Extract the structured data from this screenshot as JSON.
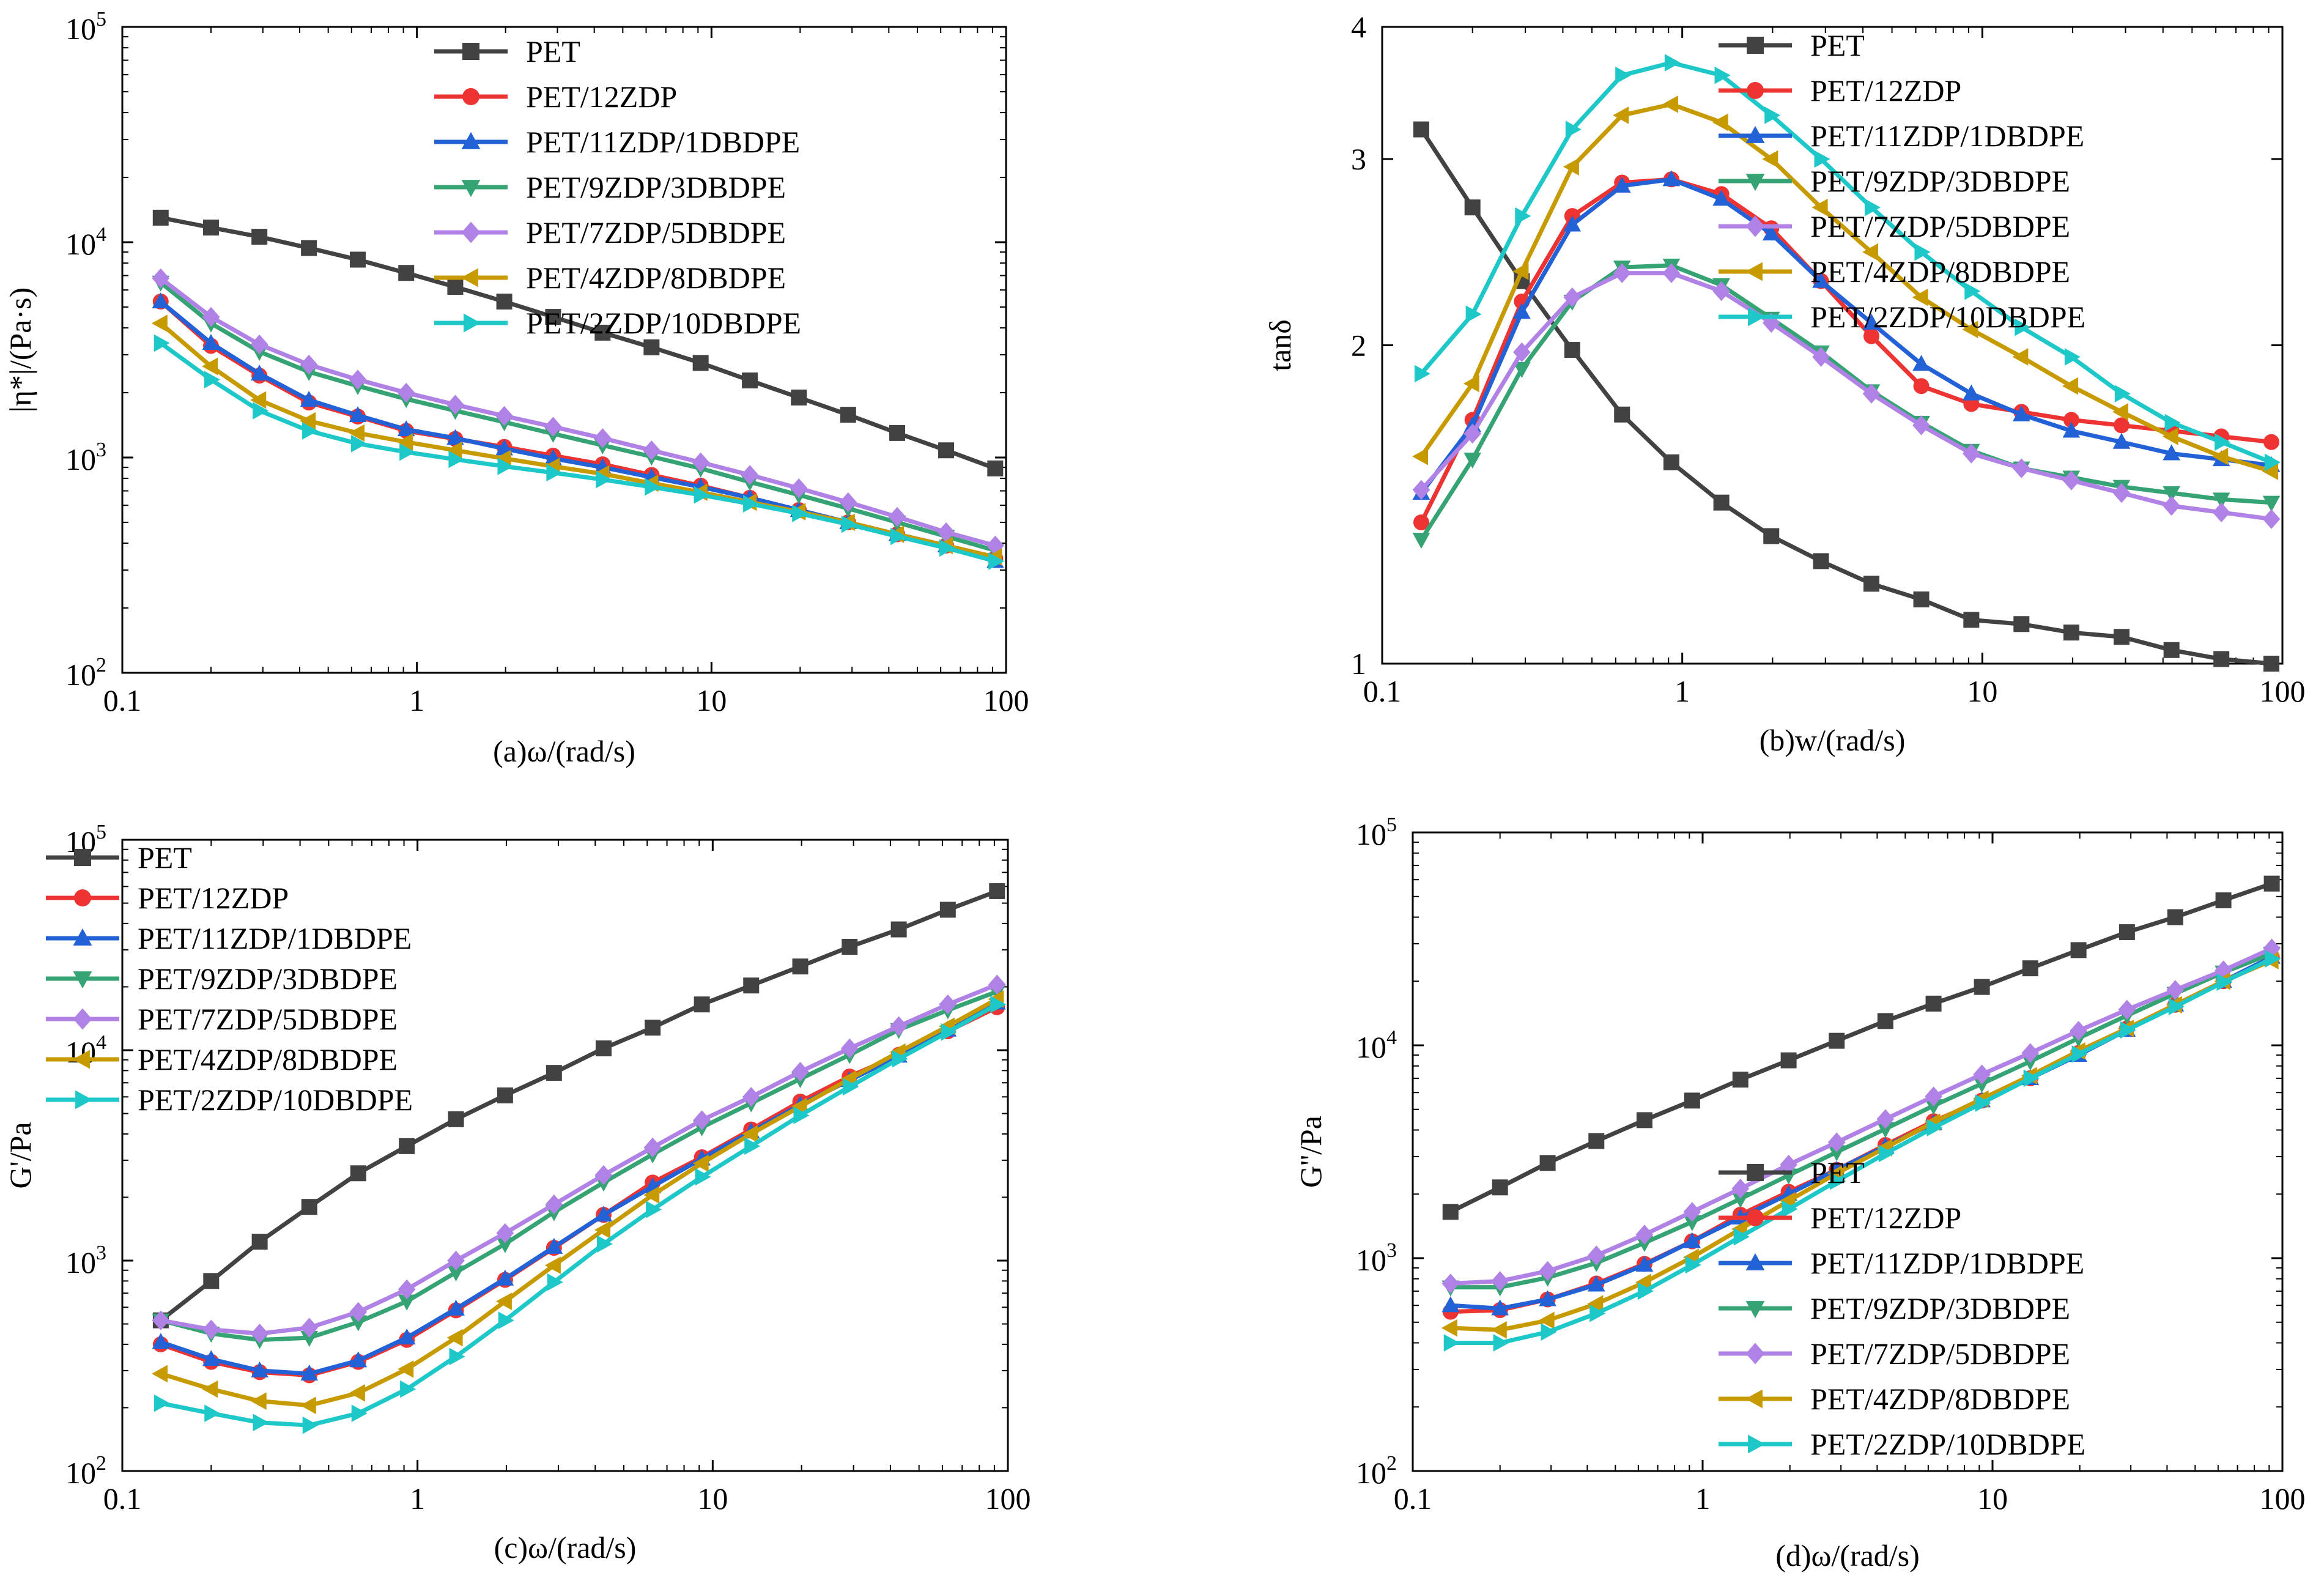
{
  "series_colors": {
    "PET": "#424242",
    "PET/12ZDP": "#ee3333",
    "PET/11ZDP/1DBDPE": "#2261d6",
    "PET/9ZDP/3DBDPE": "#35a373",
    "PET/7ZDP/5DBDPE": "#b082e6",
    "PET/4ZDP/8DBDPE": "#c79a00",
    "PET/2ZDP/10DBDPE": "#1ec8c8"
  },
  "series_markers": {
    "PET": "square",
    "PET/12ZDP": "circle",
    "PET/11ZDP/1DBDPE": "triangle-up",
    "PET/9ZDP/3DBDPE": "triangle-down",
    "PET/7ZDP/5DBDPE": "diamond",
    "PET/4ZDP/8DBDPE": "triangle-left",
    "PET/2ZDP/10DBDPE": "triangle-right"
  },
  "chart_data": [
    {
      "id": "a",
      "type": "line",
      "xscale": "log",
      "yscale": "log",
      "xlim": [
        0.1,
        100
      ],
      "ylim": [
        100,
        100000
      ],
      "xlabel": "(a)ω/(rad/s)",
      "ylabel": "|η*|/(Pa·s)",
      "xticks": [
        "0.1",
        "1",
        "10",
        "100"
      ],
      "yticks": [
        "10^2",
        "10^3",
        "10^4",
        "10^5"
      ],
      "legend": "top-right",
      "x": [
        0.135,
        0.2,
        0.292,
        0.43,
        0.63,
        0.92,
        1.35,
        1.98,
        2.9,
        4.27,
        6.26,
        9.19,
        13.5,
        19.8,
        29.1,
        42.7,
        62.6,
        91.9
      ],
      "series": [
        {
          "name": "PET",
          "values": [
            13000,
            11700,
            10600,
            9400,
            8300,
            7200,
            6200,
            5300,
            4500,
            3800,
            3250,
            2750,
            2280,
            1900,
            1580,
            1300,
            1080,
            890
          ]
        },
        {
          "name": "PET/12ZDP",
          "values": [
            5300,
            3300,
            2400,
            1800,
            1550,
            1330,
            1220,
            1120,
            1020,
            930,
            830,
            740,
            650,
            570,
            500,
            440,
            390,
            340
          ]
        },
        {
          "name": "PET/11ZDP/1DBDPE",
          "values": [
            5300,
            3400,
            2450,
            1850,
            1570,
            1350,
            1230,
            1100,
            990,
            900,
            810,
            730,
            650,
            570,
            500,
            440,
            390,
            330
          ]
        },
        {
          "name": "PET/9ZDP/3DBDPE",
          "values": [
            6500,
            4200,
            3100,
            2500,
            2150,
            1870,
            1650,
            1460,
            1290,
            1140,
            1010,
            890,
            770,
            670,
            580,
            500,
            430,
            370
          ]
        },
        {
          "name": "PET/7ZDP/5DBDPE",
          "values": [
            6800,
            4500,
            3350,
            2700,
            2300,
            2000,
            1760,
            1560,
            1390,
            1230,
            1080,
            950,
            830,
            720,
            620,
            530,
            450,
            390
          ]
        },
        {
          "name": "PET/4ZDP/8DBDPE",
          "values": [
            4200,
            2650,
            1850,
            1480,
            1300,
            1180,
            1080,
            990,
            910,
            840,
            760,
            690,
            620,
            560,
            500,
            440,
            390,
            345
          ]
        },
        {
          "name": "PET/2ZDP/10DBDPE",
          "values": [
            3400,
            2300,
            1650,
            1330,
            1160,
            1060,
            980,
            910,
            850,
            790,
            730,
            670,
            610,
            550,
            490,
            430,
            380,
            330
          ]
        }
      ]
    },
    {
      "id": "b",
      "type": "line",
      "xscale": "log",
      "yscale": "log",
      "xlim": [
        0.1,
        100
      ],
      "ylim": [
        1,
        4
      ],
      "xlabel": "(b)w/(rad/s)",
      "ylabel": "tanδ",
      "xticks": [
        "0.1",
        "1",
        "10",
        "100"
      ],
      "yticks": [
        "1",
        "2",
        "3",
        "4"
      ],
      "legend": "top-right",
      "x": [
        0.135,
        0.2,
        0.292,
        0.43,
        0.63,
        0.92,
        1.35,
        1.98,
        2.9,
        4.27,
        6.26,
        9.19,
        13.5,
        19.8,
        29.1,
        42.7,
        62.6,
        91.9
      ],
      "series": [
        {
          "name": "PET",
          "values": [
            3.2,
            2.7,
            2.3,
            1.98,
            1.72,
            1.55,
            1.42,
            1.32,
            1.25,
            1.19,
            1.15,
            1.1,
            1.09,
            1.07,
            1.06,
            1.03,
            1.01,
            1.0
          ]
        },
        {
          "name": "PET/12ZDP",
          "values": [
            1.36,
            1.7,
            2.2,
            2.65,
            2.85,
            2.87,
            2.78,
            2.58,
            2.3,
            2.04,
            1.83,
            1.76,
            1.73,
            1.7,
            1.68,
            1.66,
            1.64,
            1.62
          ]
        },
        {
          "name": "PET/11ZDP/1DBDPE",
          "values": [
            1.45,
            1.68,
            2.15,
            2.6,
            2.83,
            2.87,
            2.75,
            2.55,
            2.3,
            2.1,
            1.92,
            1.8,
            1.72,
            1.66,
            1.62,
            1.58,
            1.56,
            1.54
          ]
        },
        {
          "name": "PET/9ZDP/3DBDPE",
          "values": [
            1.31,
            1.56,
            1.9,
            2.2,
            2.37,
            2.38,
            2.28,
            2.12,
            1.97,
            1.81,
            1.69,
            1.59,
            1.53,
            1.5,
            1.47,
            1.45,
            1.43,
            1.42
          ]
        },
        {
          "name": "PET/7ZDP/5DBDPE",
          "values": [
            1.46,
            1.65,
            1.97,
            2.22,
            2.34,
            2.34,
            2.25,
            2.1,
            1.95,
            1.8,
            1.68,
            1.58,
            1.53,
            1.49,
            1.45,
            1.41,
            1.39,
            1.37
          ]
        },
        {
          "name": "PET/4ZDP/8DBDPE",
          "values": [
            1.57,
            1.84,
            2.35,
            2.95,
            3.3,
            3.38,
            3.25,
            3.0,
            2.7,
            2.45,
            2.22,
            2.07,
            1.95,
            1.83,
            1.73,
            1.64,
            1.57,
            1.52
          ]
        },
        {
          "name": "PET/2ZDP/10DBDPE",
          "values": [
            1.88,
            2.14,
            2.65,
            3.2,
            3.6,
            3.7,
            3.6,
            3.3,
            3.0,
            2.7,
            2.45,
            2.25,
            2.08,
            1.95,
            1.8,
            1.69,
            1.62,
            1.55
          ]
        }
      ]
    },
    {
      "id": "c",
      "type": "line",
      "xscale": "log",
      "yscale": "log",
      "xlim": [
        0.1,
        100
      ],
      "ylim": [
        100,
        100000
      ],
      "xlabel": "(c)ω/(rad/s)",
      "ylabel": "G'/Pa",
      "xticks": [
        "0.1",
        "1",
        "10",
        "100"
      ],
      "yticks": [
        "10^2",
        "10^3",
        "10^4",
        "10^5"
      ],
      "legend": "top-left",
      "x": [
        0.135,
        0.2,
        0.292,
        0.43,
        0.63,
        0.92,
        1.35,
        1.98,
        2.9,
        4.27,
        6.26,
        9.19,
        13.5,
        19.8,
        29.1,
        42.7,
        62.6,
        91.9
      ],
      "series": [
        {
          "name": "PET",
          "values": [
            520,
            800,
            1230,
            1800,
            2600,
            3500,
            4700,
            6100,
            7800,
            10200,
            12800,
            16500,
            20300,
            25000,
            31000,
            37500,
            46500,
            57000
          ]
        },
        {
          "name": "PET/12ZDP",
          "values": [
            400,
            330,
            295,
            285,
            330,
            420,
            580,
            810,
            1150,
            1650,
            2350,
            3100,
            4200,
            5700,
            7500,
            9500,
            12300,
            16000
          ]
        },
        {
          "name": "PET/11ZDP/1DBDPE",
          "values": [
            410,
            340,
            300,
            290,
            335,
            430,
            590,
            820,
            1160,
            1650,
            2250,
            3050,
            4100,
            5500,
            7200,
            9400,
            12500,
            16800
          ]
        },
        {
          "name": "PET/9ZDP/3DBDPE",
          "values": [
            520,
            450,
            420,
            430,
            510,
            640,
            880,
            1200,
            1700,
            2350,
            3200,
            4300,
            5600,
            7300,
            9500,
            12500,
            15500,
            19000
          ]
        },
        {
          "name": "PET/7ZDP/5DBDPE",
          "values": [
            520,
            470,
            450,
            480,
            570,
            730,
            1000,
            1350,
            1850,
            2550,
            3450,
            4650,
            6000,
            7900,
            10200,
            13000,
            16500,
            20500
          ]
        },
        {
          "name": "PET/4ZDP/8DBDPE",
          "values": [
            290,
            245,
            215,
            205,
            235,
            305,
            430,
            640,
            950,
            1400,
            2050,
            2900,
            4000,
            5400,
            7300,
            9800,
            13000,
            17500
          ]
        },
        {
          "name": "PET/2ZDP/10DBDPE",
          "values": [
            210,
            188,
            170,
            165,
            188,
            245,
            350,
            520,
            790,
            1200,
            1750,
            2500,
            3500,
            4900,
            6700,
            9100,
            12200,
            16500
          ]
        }
      ]
    },
    {
      "id": "d",
      "type": "line",
      "xscale": "log",
      "yscale": "log",
      "xlim": [
        0.1,
        100
      ],
      "ylim": [
        100,
        100000
      ],
      "xlabel": "(d)ω/(rad/s)",
      "ylabel": "G''/Pa",
      "xticks": [
        "0.1",
        "1",
        "10",
        "100"
      ],
      "yticks": [
        "10^2",
        "10^3",
        "10^4",
        "10^5"
      ],
      "legend": "bottom-right",
      "x": [
        0.135,
        0.2,
        0.292,
        0.43,
        0.63,
        0.92,
        1.35,
        1.98,
        2.9,
        4.27,
        6.26,
        9.19,
        13.5,
        19.8,
        29.1,
        42.7,
        62.6,
        91.9
      ],
      "series": [
        {
          "name": "PET",
          "values": [
            1650,
            2150,
            2800,
            3550,
            4450,
            5500,
            6900,
            8500,
            10500,
            13000,
            15700,
            18800,
            23000,
            28000,
            34000,
            40000,
            48000,
            57500
          ]
        },
        {
          "name": "PET/12ZDP",
          "values": [
            560,
            570,
            640,
            760,
            940,
            1200,
            1600,
            2050,
            2600,
            3400,
            4400,
            5500,
            7000,
            9200,
            12000,
            15500,
            20000,
            26000
          ]
        },
        {
          "name": "PET/11ZDP/1DBDPE",
          "values": [
            600,
            580,
            640,
            750,
            930,
            1200,
            1550,
            2000,
            2600,
            3350,
            4300,
            5500,
            7000,
            9000,
            11800,
            15500,
            20000,
            26000
          ]
        },
        {
          "name": "PET/9ZDP/3DBDPE",
          "values": [
            730,
            730,
            810,
            950,
            1180,
            1480,
            1900,
            2450,
            3150,
            4050,
            5200,
            6600,
            8400,
            10800,
            13800,
            17500,
            22000,
            27000
          ]
        },
        {
          "name": "PET/7ZDP/5DBDPE",
          "values": [
            760,
            780,
            870,
            1030,
            1290,
            1650,
            2120,
            2750,
            3500,
            4500,
            5750,
            7300,
            9200,
            11700,
            14700,
            18200,
            22500,
            28500
          ]
        },
        {
          "name": "PET/4ZDP/8DBDPE",
          "values": [
            470,
            460,
            510,
            610,
            770,
            1010,
            1370,
            1860,
            2500,
            3300,
            4350,
            5600,
            7200,
            9400,
            12000,
            15500,
            20000,
            25000
          ]
        },
        {
          "name": "PET/2ZDP/10DBDPE",
          "values": [
            400,
            400,
            450,
            550,
            700,
            930,
            1260,
            1700,
            2300,
            3100,
            4100,
            5350,
            7000,
            9100,
            11800,
            15200,
            19800,
            25500
          ]
        }
      ]
    }
  ]
}
